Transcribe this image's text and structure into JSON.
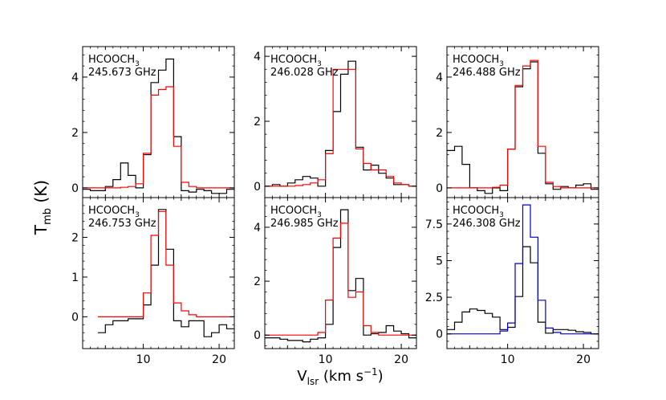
{
  "figure": {
    "ylabel_main": "T",
    "ylabel_sub": "mb",
    "ylabel_unit": " (K)",
    "xlabel_main": "V",
    "xlabel_sub": "lsr",
    "xlabel_unit_pre": " (km s",
    "xlabel_unit_sup": "−1",
    "xlabel_unit_post": ")",
    "colors": {
      "observed": "#000000",
      "model_red": "#ff0000",
      "model_blue": "#0000cc"
    }
  },
  "chart_data": [
    {
      "type": "line",
      "step": true,
      "species_main": "HCOOCH",
      "species_sub": "3",
      "frequency": "245.673 GHz",
      "xlim": [
        2,
        22
      ],
      "ylim": [
        -0.35,
        5.1
      ],
      "x_ticks": [],
      "y_ticks": [
        0,
        2,
        4
      ],
      "x": [
        2.5,
        3.5,
        4.5,
        5.5,
        6.5,
        7.5,
        8.5,
        9.5,
        10.5,
        11.5,
        12.5,
        13.5,
        14.5,
        15.5,
        16.5,
        17.5,
        18.5,
        19.5,
        20.5,
        21.5
      ],
      "series": [
        {
          "name": "",
          "color": "#000000",
          "values": [
            -0.05,
            -0.1,
            -0.1,
            0.05,
            0.3,
            0.9,
            0.45,
            0.0,
            1.2,
            3.8,
            4.25,
            4.65,
            1.85,
            -0.1,
            -0.15,
            -0.05,
            -0.1,
            -0.2,
            -0.2,
            -0.05
          ]
        },
        {
          "name": "",
          "color": "#ff0000",
          "values": [
            0.0,
            0.0,
            0.0,
            0.0,
            0.0,
            0.02,
            0.05,
            0.15,
            1.25,
            3.35,
            3.55,
            3.65,
            1.5,
            0.2,
            0.05,
            0.0,
            0.0,
            0.0,
            0.0,
            0.0
          ]
        }
      ]
    },
    {
      "type": "line",
      "step": true,
      "species_main": "HCOOCH",
      "species_sub": "3",
      "frequency": "246.028 GHz",
      "xlim": [
        2,
        22
      ],
      "ylim": [
        -0.35,
        4.3
      ],
      "x_ticks": [],
      "y_ticks": [
        0,
        2,
        4
      ],
      "x": [
        2.5,
        3.5,
        4.5,
        5.5,
        6.5,
        7.5,
        8.5,
        9.5,
        10.5,
        11.5,
        12.5,
        13.5,
        14.5,
        15.5,
        16.5,
        17.5,
        18.5,
        19.5,
        20.5,
        21.5
      ],
      "series": [
        {
          "name": "",
          "color": "#000000",
          "values": [
            0.0,
            0.05,
            0.0,
            0.1,
            0.2,
            0.3,
            0.25,
            0.0,
            1.1,
            2.3,
            3.45,
            3.85,
            1.2,
            0.5,
            0.65,
            0.4,
            0.25,
            0.05,
            0.05,
            0.0
          ]
        },
        {
          "name": "",
          "color": "#ff0000",
          "values": [
            0.0,
            0.0,
            0.0,
            0.0,
            0.02,
            0.05,
            0.1,
            0.2,
            1.0,
            3.6,
            3.6,
            3.6,
            1.15,
            0.7,
            0.5,
            0.5,
            0.3,
            0.1,
            0.05,
            0.0
          ]
        }
      ]
    },
    {
      "type": "line",
      "step": true,
      "species_main": "HCOOCH",
      "species_sub": "3",
      "frequency": "246.488 GHz",
      "xlim": [
        2,
        22
      ],
      "ylim": [
        -0.35,
        5.1
      ],
      "x_ticks": [],
      "y_ticks": [
        0,
        2,
        4
      ],
      "x": [
        2.5,
        3.5,
        4.5,
        5.5,
        6.5,
        7.5,
        8.5,
        9.5,
        10.5,
        11.5,
        12.5,
        13.5,
        14.5,
        15.5,
        16.5,
        17.5,
        18.5,
        19.5,
        20.5,
        21.5
      ],
      "series": [
        {
          "name": "",
          "color": "#000000",
          "values": [
            1.35,
            1.5,
            0.85,
            0.0,
            -0.1,
            -0.2,
            0.0,
            -0.1,
            1.4,
            3.65,
            4.3,
            4.55,
            1.25,
            0.15,
            -0.05,
            0.05,
            0.0,
            0.1,
            0.15,
            -0.05
          ]
        },
        {
          "name": "",
          "color": "#ff0000",
          "values": [
            0.0,
            0.0,
            0.0,
            0.0,
            0.0,
            0.0,
            0.02,
            0.1,
            1.4,
            3.7,
            4.4,
            4.6,
            1.5,
            0.2,
            0.05,
            0.0,
            0.0,
            0.0,
            0.0,
            0.0
          ]
        }
      ]
    },
    {
      "type": "line",
      "step": true,
      "species_main": "HCOOCH",
      "species_sub": "3",
      "frequency": "246.753 GHz",
      "xlim": [
        2,
        22
      ],
      "ylim": [
        -0.8,
        3.0
      ],
      "x_ticks": [
        10,
        20
      ],
      "y_ticks": [
        0,
        1,
        2
      ],
      "x": [
        4.5,
        5.5,
        6.5,
        7.5,
        8.5,
        9.5,
        10.5,
        11.5,
        12.5,
        13.5,
        14.5,
        15.5,
        16.5,
        17.5,
        18.5,
        19.5,
        20.5,
        21.5
      ],
      "series": [
        {
          "name": "",
          "color": "#000000",
          "values": [
            -0.4,
            -0.2,
            -0.1,
            -0.1,
            -0.05,
            -0.05,
            0.3,
            1.3,
            2.7,
            1.7,
            -0.1,
            -0.25,
            -0.1,
            -0.1,
            -0.5,
            -0.4,
            -0.2,
            -0.3
          ]
        },
        {
          "name": "",
          "color": "#ff0000",
          "values": [
            0.0,
            0.0,
            0.0,
            0.0,
            0.0,
            0.0,
            0.6,
            2.05,
            2.65,
            1.3,
            0.35,
            0.15,
            0.05,
            0.0,
            0.0,
            0.0,
            0.0,
            0.0
          ]
        }
      ]
    },
    {
      "type": "line",
      "step": true,
      "species_main": "HCOOCH",
      "species_sub": "3",
      "frequency": "246.985 GHz",
      "xlim": [
        2,
        22
      ],
      "ylim": [
        -0.5,
        5.1
      ],
      "x_ticks": [
        10,
        20
      ],
      "y_ticks": [
        0,
        2,
        4
      ],
      "x": [
        2.5,
        3.5,
        4.5,
        5.5,
        6.5,
        7.5,
        8.5,
        9.5,
        10.5,
        11.5,
        12.5,
        13.5,
        14.5,
        15.5,
        16.5,
        17.5,
        18.5,
        19.5,
        20.5,
        21.5
      ],
      "series": [
        {
          "name": "",
          "color": "#000000",
          "values": [
            -0.1,
            -0.1,
            -0.15,
            -0.2,
            -0.2,
            -0.25,
            -0.15,
            -0.1,
            0.4,
            3.25,
            4.65,
            1.65,
            2.1,
            0.0,
            0.05,
            0.1,
            0.35,
            0.15,
            0.05,
            -0.1
          ]
        },
        {
          "name": "",
          "color": "#ff0000",
          "values": [
            0.0,
            0.0,
            0.0,
            0.0,
            0.0,
            0.0,
            0.0,
            0.1,
            1.3,
            3.6,
            4.15,
            1.4,
            1.6,
            0.35,
            0.1,
            0.0,
            0.0,
            0.0,
            0.0,
            0.0
          ]
        }
      ]
    },
    {
      "type": "line",
      "step": true,
      "species_main": "HCOOCH",
      "species_sub": "3",
      "frequency": "246.308 GHz",
      "xlim": [
        2,
        22
      ],
      "ylim": [
        -1.0,
        9.3
      ],
      "x_ticks": [
        10,
        20
      ],
      "y_ticks": [
        0.0,
        2.5,
        5.0,
        7.5
      ],
      "x": [
        2.5,
        3.5,
        4.5,
        5.5,
        6.5,
        7.5,
        8.5,
        9.5,
        10.5,
        11.5,
        12.5,
        13.5,
        14.5,
        15.5,
        16.5,
        17.5,
        18.5,
        19.5,
        20.5,
        21.5
      ],
      "series": [
        {
          "name": "",
          "color": "#000000",
          "values": [
            0.3,
            0.8,
            1.5,
            1.7,
            1.6,
            1.4,
            1.15,
            0.3,
            0.45,
            2.55,
            5.95,
            4.85,
            0.8,
            0.05,
            0.3,
            0.3,
            0.25,
            0.15,
            0.1,
            0.0
          ]
        },
        {
          "name": "",
          "color": "#0000cc",
          "values": [
            0.0,
            0.0,
            0.0,
            0.0,
            0.0,
            0.0,
            0.0,
            0.2,
            0.75,
            4.8,
            8.8,
            6.6,
            2.3,
            0.4,
            0.1,
            0.0,
            0.0,
            0.0,
            0.0,
            0.0
          ]
        }
      ]
    }
  ]
}
